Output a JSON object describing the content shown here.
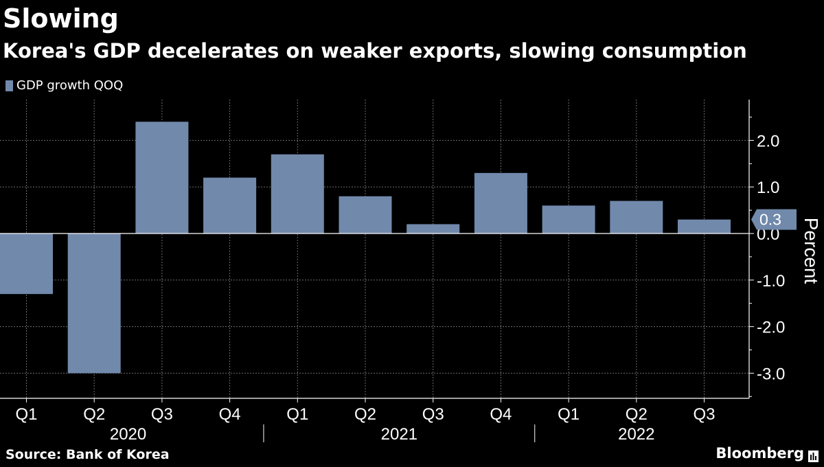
{
  "title": "Slowing",
  "subtitle": "Korea's GDP decelerates on weaker exports, slowing consumption",
  "source": "Source: Bank of Korea",
  "brand": "Bloomberg",
  "colors": {
    "bar": "#7189AB",
    "background": "#000000",
    "text": "#FFFFFF",
    "grid": "#6E6E6E"
  },
  "chart_data": {
    "type": "bar",
    "legend": [
      "GDP growth QOQ"
    ],
    "categories": [
      "Q1",
      "Q2",
      "Q3",
      "Q4",
      "Q1",
      "Q2",
      "Q3",
      "Q4",
      "Q1",
      "Q2",
      "Q3"
    ],
    "years": [
      {
        "label": "2020",
        "quarters": 4
      },
      {
        "label": "2021",
        "quarters": 4
      },
      {
        "label": "2022",
        "quarters": 3
      }
    ],
    "series": [
      {
        "name": "GDP growth QOQ",
        "values": [
          -1.3,
          -3.0,
          2.4,
          1.2,
          1.7,
          0.8,
          0.2,
          1.3,
          0.6,
          0.7,
          0.3
        ]
      }
    ],
    "ylabel": "Percent",
    "ylim": [
      -3.5,
      2.9
    ],
    "yticks": [
      2.0,
      1.0,
      0.0,
      -1.0,
      -2.0,
      -3.0
    ],
    "ytick_labels": [
      "2.0",
      "1.0",
      "0.0",
      "-1.0",
      "-2.0",
      "-3.0"
    ],
    "last_value_label": "0.3",
    "grid": true,
    "legend_position": "top-left",
    "axis_position": "right"
  }
}
